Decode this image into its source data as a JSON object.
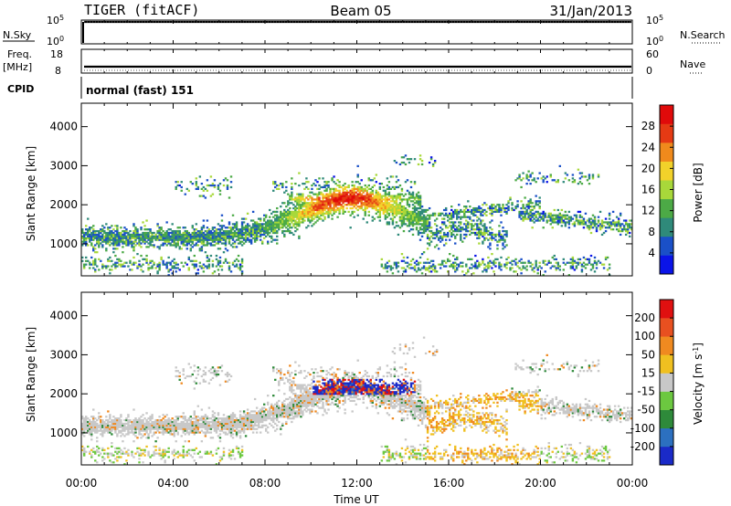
{
  "header": {
    "radar": "TIGER (fitACF)",
    "beam": "Beam 05",
    "date": "31/Jan/2013"
  },
  "strips": {
    "nsky": {
      "label": "N.Sky",
      "ticks": [
        "10^5",
        "10^0"
      ]
    },
    "nsearch": {
      "label": "N.Search",
      "ticks": [
        "10^5",
        "10^0"
      ]
    },
    "freq": {
      "label_top": "Freq.",
      "label_bottom": "[MHz]",
      "ticks": [
        "18",
        "8"
      ]
    },
    "nave": {
      "label": "Nave",
      "ticks": [
        "60",
        "0"
      ]
    },
    "cpid": {
      "label": "CPID",
      "value": "normal (fast) 151"
    }
  },
  "chart_data": [
    {
      "type": "heatmap",
      "name": "power",
      "ylabel": "Slant Range [km]",
      "xlabel": "",
      "x_ticks": [
        "00:00",
        "04:00",
        "08:00",
        "12:00",
        "16:00",
        "20:00",
        "00:00"
      ],
      "x_range_hours": [
        0,
        24
      ],
      "y_ticks": [
        1000,
        2000,
        3000,
        4000
      ],
      "y_range_km": [
        180,
        4600
      ],
      "colorbar": {
        "label": "Power [dB]",
        "ticks": [
          4,
          8,
          12,
          16,
          20,
          24,
          28
        ],
        "range": [
          0,
          32
        ],
        "colors": [
          "#0a14e8",
          "#1a50c8",
          "#2f8a7a",
          "#4caa46",
          "#a8d83a",
          "#f2d22a",
          "#f08a1c",
          "#e53a14",
          "#e00a0a"
        ]
      }
    },
    {
      "type": "heatmap",
      "name": "velocity",
      "ylabel": "Slant Range [km]",
      "xlabel": "Time UT",
      "x_ticks": [
        "00:00",
        "04:00",
        "08:00",
        "12:00",
        "16:00",
        "20:00",
        "00:00"
      ],
      "x_range_hours": [
        0,
        24
      ],
      "y_ticks": [
        1000,
        2000,
        3000,
        4000
      ],
      "y_range_km": [
        180,
        4600
      ],
      "colorbar": {
        "label": "Velocity [m s^-1]",
        "ticks": [
          "200",
          "100",
          "50",
          "15",
          "-15",
          "-50",
          "-100",
          "-200"
        ],
        "colors": [
          "#1a2ac8",
          "#2c70c0",
          "#2e8a3a",
          "#6cc840",
          "#c8c8c8",
          "#f0c020",
          "#f08a20",
          "#e85020",
          "#e01010"
        ]
      }
    }
  ]
}
